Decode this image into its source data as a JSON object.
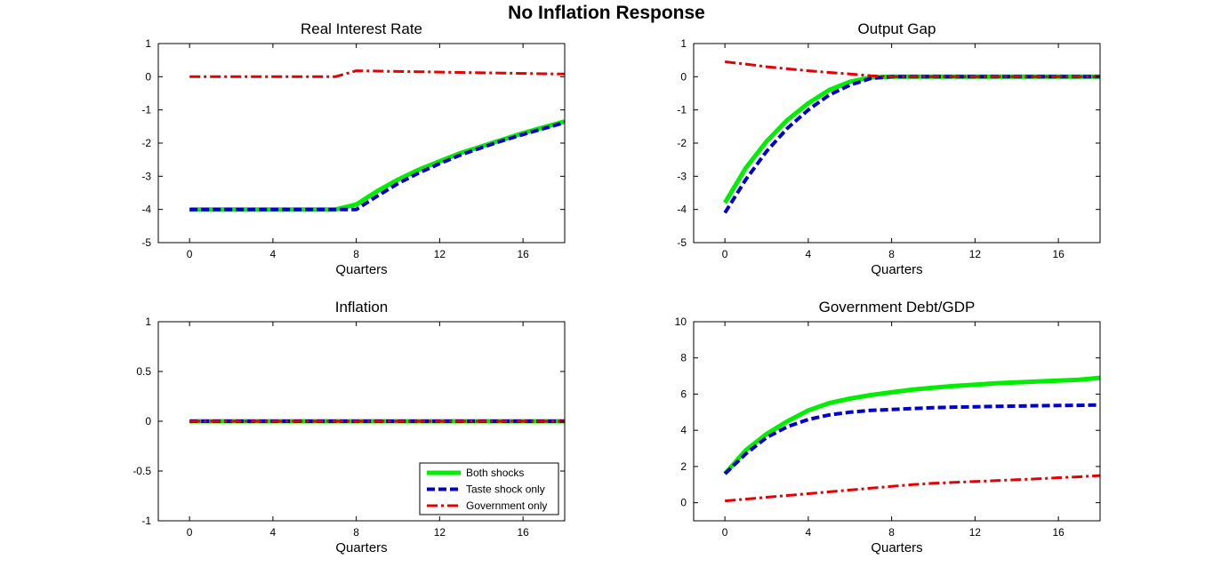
{
  "figure": {
    "title": "No Inflation Response"
  },
  "colors": {
    "both": "#00ee00",
    "taste": "#0000cc",
    "government": "#e60000",
    "axis": "#000000"
  },
  "legend": {
    "placement": "bottom-right of Inflation panel",
    "entries": [
      {
        "key": "both",
        "label": "Both shocks",
        "style": "solid"
      },
      {
        "key": "taste",
        "label": "Taste shock only",
        "style": "dashed"
      },
      {
        "key": "government",
        "label": "Government only",
        "style": "dash-dot"
      }
    ]
  },
  "chart_data": [
    {
      "type": "line",
      "title": "Real Interest Rate",
      "xlabel": "Quarters",
      "ylabel": "",
      "xlim": [
        -1.5,
        18
      ],
      "ylim": [
        -5,
        1
      ],
      "xticks": [
        0,
        4,
        8,
        12,
        16
      ],
      "yticks": [
        -5,
        -4,
        -3,
        -2,
        -1,
        0,
        1
      ],
      "ytick_labels": [
        "-5",
        "-4",
        "-3",
        "-2",
        "-1",
        "0",
        "1"
      ],
      "x": [
        0,
        1,
        2,
        3,
        4,
        5,
        6,
        7,
        8,
        9,
        10,
        11,
        12,
        13,
        14,
        15,
        16,
        17,
        18
      ],
      "series": [
        {
          "key": "both",
          "name": "Both shocks",
          "values": [
            -4,
            -4,
            -4,
            -4,
            -4,
            -4,
            -4,
            -4,
            -3.85,
            -3.45,
            -3.1,
            -2.8,
            -2.55,
            -2.3,
            -2.1,
            -1.9,
            -1.7,
            -1.52,
            -1.35
          ]
        },
        {
          "key": "taste",
          "name": "Taste shock only",
          "values": [
            -4,
            -4,
            -4,
            -4,
            -4,
            -4,
            -4,
            -4,
            -4,
            -3.6,
            -3.22,
            -2.9,
            -2.62,
            -2.36,
            -2.14,
            -1.93,
            -1.74,
            -1.56,
            -1.38
          ]
        },
        {
          "key": "government",
          "name": "Government only",
          "values": [
            0,
            0,
            0,
            0,
            0,
            0,
            0,
            0,
            0.18,
            0.17,
            0.16,
            0.15,
            0.14,
            0.13,
            0.12,
            0.11,
            0.1,
            0.09,
            0.08
          ]
        }
      ]
    },
    {
      "type": "line",
      "title": "Output Gap",
      "xlabel": "Quarters",
      "ylabel": "",
      "xlim": [
        -1.5,
        18
      ],
      "ylim": [
        -5,
        1
      ],
      "xticks": [
        0,
        4,
        8,
        12,
        16
      ],
      "yticks": [
        -5,
        -4,
        -3,
        -2,
        -1,
        0,
        1
      ],
      "ytick_labels": [
        "-5",
        "-4",
        "-3",
        "-2",
        "-1",
        "0",
        "1"
      ],
      "x": [
        0,
        1,
        2,
        3,
        4,
        5,
        6,
        7,
        8,
        9,
        10,
        11,
        12,
        13,
        14,
        15,
        16,
        17,
        18
      ],
      "series": [
        {
          "key": "both",
          "name": "Both shocks",
          "values": [
            -3.8,
            -2.75,
            -1.95,
            -1.3,
            -0.8,
            -0.4,
            -0.15,
            -0.02,
            0,
            0,
            0,
            0,
            0,
            0,
            0,
            0,
            0,
            0,
            0
          ]
        },
        {
          "key": "taste",
          "name": "Taste shock only",
          "values": [
            -4.1,
            -3.1,
            -2.25,
            -1.55,
            -1.0,
            -0.55,
            -0.25,
            -0.05,
            0,
            0,
            0,
            0,
            0,
            0,
            0,
            0,
            0,
            0,
            0
          ]
        },
        {
          "key": "government",
          "name": "Government only",
          "values": [
            0.45,
            0.38,
            0.3,
            0.24,
            0.18,
            0.13,
            0.08,
            0.03,
            0,
            0,
            0,
            0,
            0,
            0,
            0,
            0,
            0,
            0,
            0
          ]
        }
      ]
    },
    {
      "type": "line",
      "title": "Inflation",
      "xlabel": "Quarters",
      "ylabel": "",
      "xlim": [
        -1.5,
        18
      ],
      "ylim": [
        -1,
        1
      ],
      "xticks": [
        0,
        4,
        8,
        12,
        16
      ],
      "yticks": [
        -1,
        -0.5,
        0,
        0.5,
        1
      ],
      "ytick_labels": [
        "-1",
        "-0.5",
        "0",
        "0.5",
        "1"
      ],
      "x": [
        0,
        1,
        2,
        3,
        4,
        5,
        6,
        7,
        8,
        9,
        10,
        11,
        12,
        13,
        14,
        15,
        16,
        17,
        18
      ],
      "series": [
        {
          "key": "both",
          "name": "Both shocks",
          "values": [
            0,
            0,
            0,
            0,
            0,
            0,
            0,
            0,
            0,
            0,
            0,
            0,
            0,
            0,
            0,
            0,
            0,
            0,
            0
          ]
        },
        {
          "key": "taste",
          "name": "Taste shock only",
          "values": [
            0,
            0,
            0,
            0,
            0,
            0,
            0,
            0,
            0,
            0,
            0,
            0,
            0,
            0,
            0,
            0,
            0,
            0,
            0
          ]
        },
        {
          "key": "government",
          "name": "Government only",
          "values": [
            0,
            0,
            0,
            0,
            0,
            0,
            0,
            0,
            0,
            0,
            0,
            0,
            0,
            0,
            0,
            0,
            0,
            0,
            0
          ]
        }
      ]
    },
    {
      "type": "line",
      "title": "Government Debt/GDP",
      "xlabel": "Quarters",
      "ylabel": "",
      "xlim": [
        -1.5,
        18
      ],
      "ylim": [
        -1,
        10
      ],
      "xticks": [
        0,
        4,
        8,
        12,
        16
      ],
      "yticks": [
        0,
        2,
        4,
        6,
        8,
        10
      ],
      "ytick_labels": [
        "0",
        "2",
        "4",
        "6",
        "8",
        "10"
      ],
      "x": [
        0,
        1,
        2,
        3,
        4,
        5,
        6,
        7,
        8,
        9,
        10,
        11,
        12,
        13,
        14,
        15,
        16,
        17,
        18
      ],
      "series": [
        {
          "key": "both",
          "name": "Both shocks",
          "values": [
            1.6,
            2.9,
            3.8,
            4.5,
            5.1,
            5.5,
            5.75,
            5.95,
            6.1,
            6.25,
            6.35,
            6.45,
            6.52,
            6.6,
            6.65,
            6.7,
            6.75,
            6.8,
            6.9
          ]
        },
        {
          "key": "taste",
          "name": "Taste shock only",
          "values": [
            1.6,
            2.7,
            3.6,
            4.2,
            4.6,
            4.85,
            5.0,
            5.1,
            5.15,
            5.2,
            5.25,
            5.28,
            5.3,
            5.32,
            5.34,
            5.36,
            5.37,
            5.38,
            5.4
          ]
        },
        {
          "key": "government",
          "name": "Government only",
          "values": [
            0.1,
            0.2,
            0.3,
            0.4,
            0.5,
            0.6,
            0.7,
            0.8,
            0.9,
            1.0,
            1.07,
            1.12,
            1.17,
            1.22,
            1.27,
            1.32,
            1.38,
            1.43,
            1.5
          ]
        }
      ]
    }
  ]
}
